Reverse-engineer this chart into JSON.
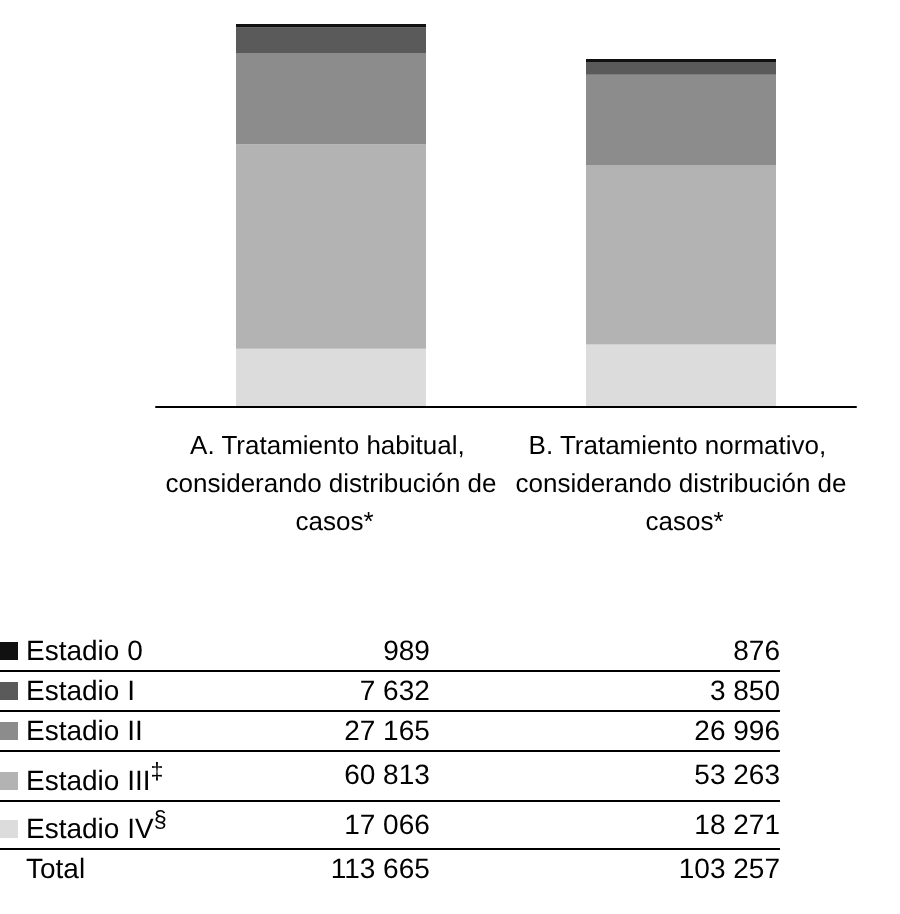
{
  "chart_data": {
    "type": "bar",
    "stacked": true,
    "categories": [
      "A. Tratamiento habitual, considerando distribución de casos*",
      "B. Tratamiento normativo, considerando distribución de casos*"
    ],
    "series": [
      {
        "name": "Estadio IV$^{§}$",
        "color": "#dcdcdc",
        "values": [
          17066,
          18271
        ],
        "value_labels": [
          "17 066",
          "18 271"
        ]
      },
      {
        "name": "Estadio III$^{‡}$",
        "color": "#b3b3b3",
        "values": [
          60813,
          53263
        ],
        "value_labels": [
          "60 813",
          "53 263"
        ]
      },
      {
        "name": "Estadio II",
        "color": "#8c8c8c",
        "values": [
          27165,
          26996
        ],
        "value_labels": [
          "27 165",
          "26 996"
        ]
      },
      {
        "name": "Estadio I",
        "color": "#5a5a5a",
        "values": [
          7632,
          3850
        ],
        "value_labels": [
          "7 632",
          "3 850"
        ]
      },
      {
        "name": "Estadio 0",
        "color": "#111111",
        "values": [
          989,
          876
        ],
        "value_labels": [
          "989",
          "876"
        ]
      }
    ],
    "annotations": [
      "Total",
      "113 665",
      "103 257"
    ],
    "legend": "bottom left",
    "grid": false
  }
}
